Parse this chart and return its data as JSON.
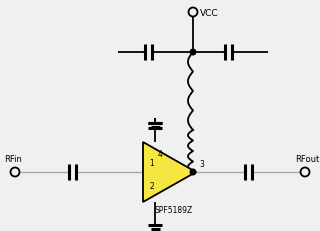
{
  "bg_color": "#f0f0f0",
  "line_color": "#000000",
  "amp_fill_color": "#f5e642",
  "amp_stroke_color": "#000000",
  "wire_color": "#aaaaaa",
  "dot_color": "#000000",
  "vcc_label": "VCC",
  "rfin_label": "RFin",
  "rfout_label": "RFout",
  "ic_label": "SPF5189Z",
  "pin1_label": "1",
  "pin2_label": "2",
  "pin3_label": "3",
  "pin4_label": "4",
  "fig_w": 3.2,
  "fig_h": 2.31,
  "dpi": 100
}
